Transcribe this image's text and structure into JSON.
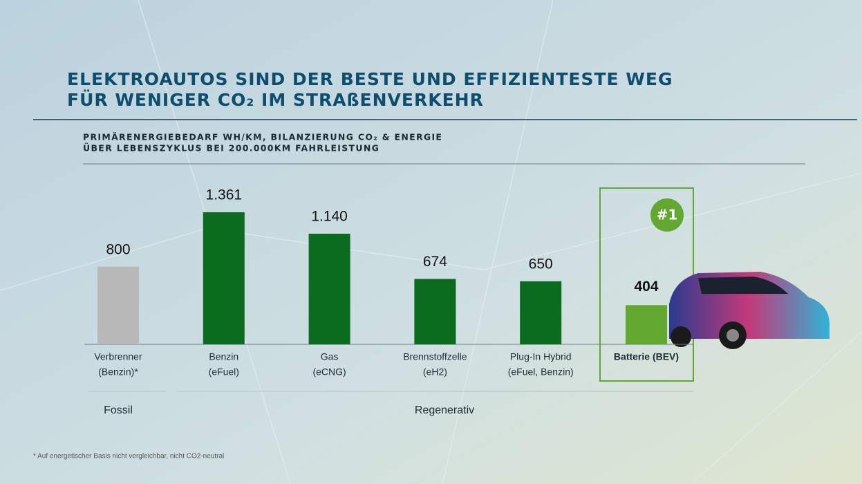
{
  "chart_data": {
    "type": "bar",
    "title": [
      "ELEKTROAUTOS SIND DER BESTE UND EFFIZIENTESTE WEG",
      "FÜR WENIGER CO₂ IM STRAßENVERKEHR"
    ],
    "subtitle": [
      "PRIMÄRENERGIEBEDARF WH/KM, BILANZIERUNG CO₂ & ENERGIE",
      "ÜBER LEBENSZYKLUS BEI 200.000KM FAHRLEISTUNG"
    ],
    "categories": [
      [
        "Verbrenner",
        "(Benzin)*"
      ],
      [
        "Benzin",
        "(eFuel)"
      ],
      [
        "Gas",
        "(eCNG)"
      ],
      [
        "Brennstoffzelle",
        "(eH2)"
      ],
      [
        "Plug-In Hybrid",
        "(eFuel, Benzin)"
      ],
      [
        "Batterie (BEV)"
      ]
    ],
    "values": [
      800,
      1361,
      1140,
      674,
      650,
      404
    ],
    "value_labels": [
      "800",
      "1.361",
      "1.140",
      "674",
      "650",
      "404"
    ],
    "colors": [
      "#b9b9b9",
      "#0b6b1f",
      "#0b6b1f",
      "#0b6b1f",
      "#0b6b1f",
      "#62a72f"
    ],
    "groups": [
      "Fossil",
      "Regenerativ"
    ],
    "badge": "#1",
    "footnote": "* Auf energetischer Basis nicht vergleichbar, nicht CO2-neutral"
  }
}
